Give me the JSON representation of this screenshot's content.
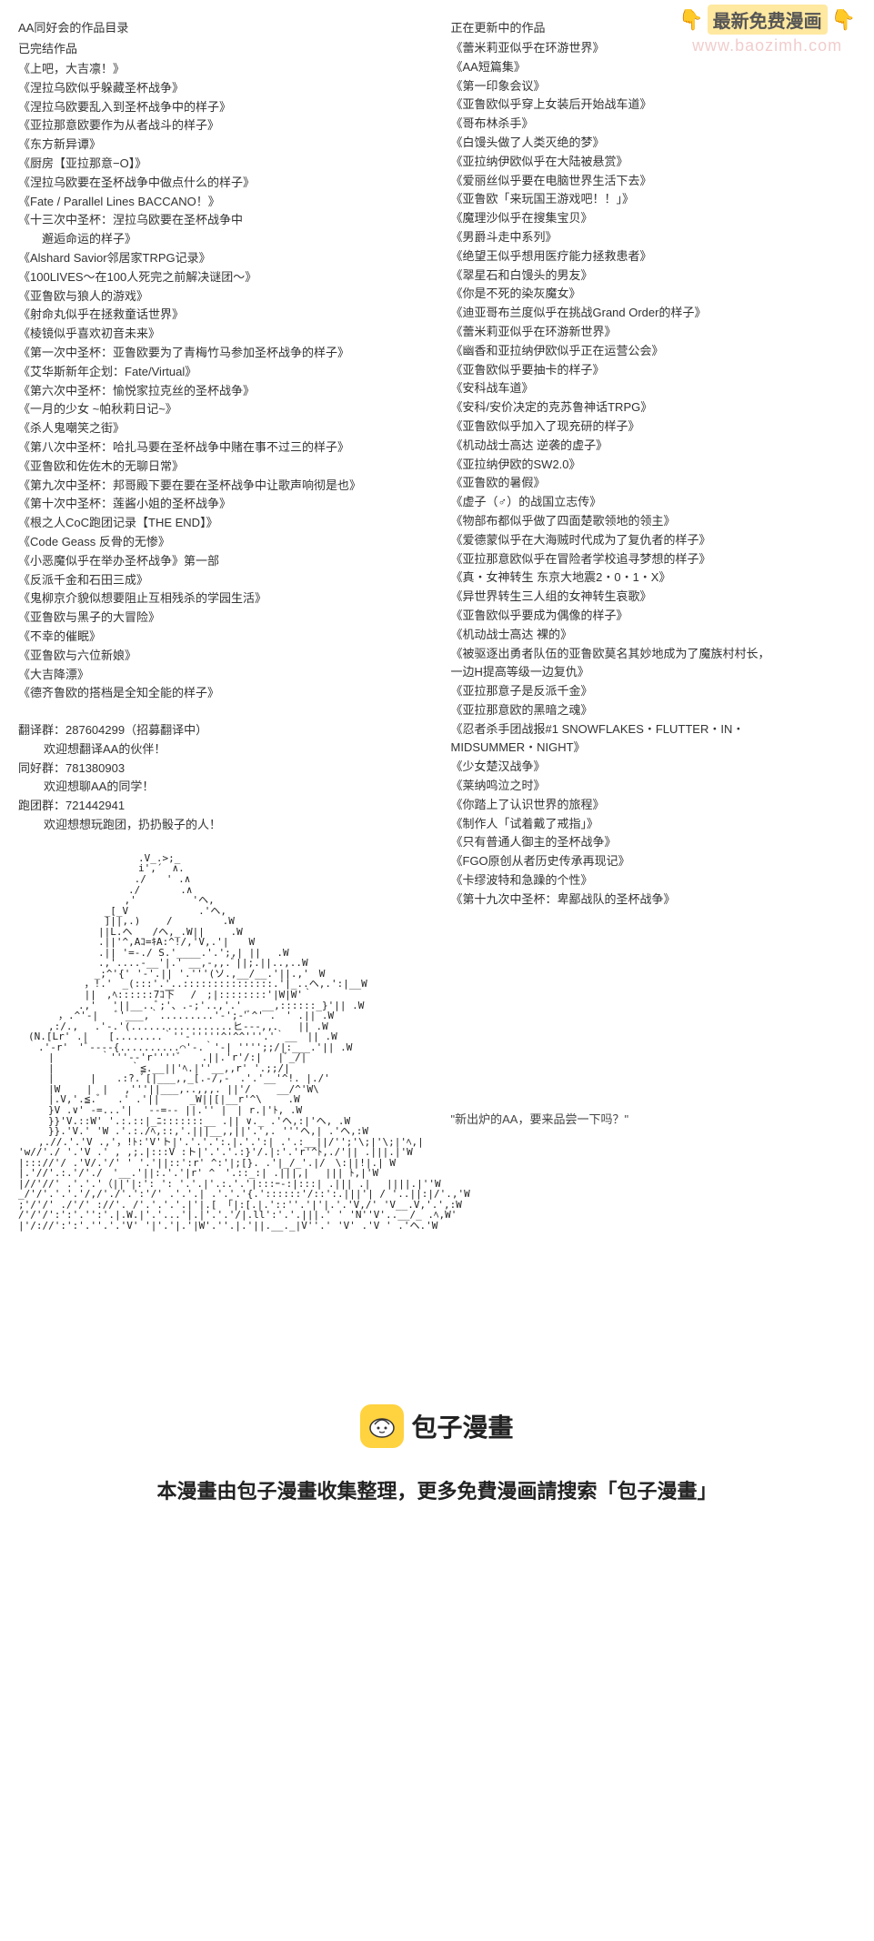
{
  "watermark": {
    "hand": "👇",
    "label": "最新免费漫画",
    "url": "www.baozimh.com"
  },
  "left": {
    "header": "AA同好会的作品目录",
    "subheader": "已完结作品",
    "works": [
      "《上吧，大吉凛！》",
      "《涅拉乌欧似乎躲藏圣杯战争》",
      "《涅拉乌欧要乱入到圣杯战争中的样子》",
      "《亚拉那意欧要作为从者战斗的样子》",
      "《东方新异谭》",
      "《厨房【亚拉那意−O】》",
      "《涅拉乌欧要在圣杯战争中做点什么的样子》",
      "《Fate / Parallel Lines BACCANO！》",
      "《十三次中圣杯：涅拉乌欧要在圣杯战争中",
      "　　邂逅命运的样子》",
      "《Alshard Savior邻居家TRPG记录》",
      "《100LIVES～在100人死完之前解决谜团～》",
      "《亚鲁欧与狼人的游戏》",
      "《射命丸似乎在拯救童话世界》",
      "《棱镜似乎喜欢初音未来》",
      "《第一次中圣杯：亚鲁欧要为了青梅竹马参加圣杯战争的样子》",
      "《艾华斯新年企划：Fate/Virtual》",
      "《第六次中圣杯：愉悦家拉克丝的圣杯战争》",
      "《一月的少女 ~帕秋莉日记~》",
      "《杀人鬼嘲笑之街》",
      "《第八次中圣杯：哈扎马要在圣杯战争中赌在事不过三的样子》",
      "《亚鲁欧和佐佐木的无聊日常》",
      "《第九次中圣杯：邦哥殿下要在要在圣杯战争中让歌声响彻是也》",
      "《第十次中圣杯：莲酱小姐的圣杯战争》",
      "《根之人CoC跑团记录【THE END】》",
      "《Code Geass 反骨的无惨》",
      "《小恶魔似乎在举办圣杯战争》第一部",
      "《反派千金和石田三成》",
      "《鬼柳京介貌似想要阻止互相残杀的学园生活》",
      "《亚鲁欧与黑子的大冒险》",
      "《不幸的催眠》",
      "《亚鲁欧与六位新娘》",
      "《大吉降漂》",
      "《德齐鲁欧的搭档是全知全能的样子》"
    ],
    "groups": [
      {
        "label": "翻译群：",
        "number": "287604299（招募翻译中）",
        "note": "欢迎想翻译AA的伙伴！"
      },
      {
        "label": "同好群：",
        "number": "781380903",
        "note": "欢迎想聊AA的同学！"
      },
      {
        "label": "跑团群：",
        "number": "721442941",
        "note": "欢迎想想玩跑团，扔扔骰子的人！"
      }
    ]
  },
  "right": {
    "header": "正在更新中的作品",
    "works": [
      "《蕾米莉亚似乎在环游世界》",
      "《AA短篇集》",
      "《第一印象会议》",
      "《亚鲁欧似乎穿上女装后开始战车道》",
      "《哥布林杀手》",
      "《白馒头做了人类灭绝的梦》",
      "《亚拉纳伊欧似乎在大陆被悬赏》",
      "《爱丽丝似乎要在电脑世界生活下去》",
      "《亚鲁欧「来玩国王游戏吧！！」》",
      "《魔理沙似乎在搜集宝贝》",
      "《男爵斗走中系列》",
      "《绝望王似乎想用医疗能力拯救患者》",
      "《翠星石和白馒头的男友》",
      "《你是不死的染灰魔女》",
      "《迪亚哥布兰度似乎在挑战Grand Order的样子》",
      "《蕾米莉亚似乎在环游新世界》",
      "《幽香和亚拉纳伊欧似乎正在运营公会》",
      "《亚鲁欧似乎要抽卡的样子》",
      "《安科战车道》",
      "《安科/安价决定的克苏鲁神话TRPG》",
      "《亚鲁欧似乎加入了现充研的样子》",
      "《机动战士高达 逆袭的虚子》",
      "《亚拉纳伊欧的SW2.0》",
      "《亚鲁欧的暑假》",
      "《虚子（♂）的战国立志传》",
      "《物部布都似乎做了四面楚歌领地的领主》",
      "《爱德蒙似乎在大海贼时代成为了复仇者的样子》",
      "《亚拉那意欧似乎在冒险者学校追寻梦想的样子》",
      "《真・女神转生 东京大地震2・0・1・X》",
      "《异世界转生三人组的女神转生哀歌》",
      "《亚鲁欧似乎要成为偶像的样子》",
      "《机动战士高达 裸的》",
      "《被驱逐出勇者队伍的亚鲁欧莫名其妙地成为了魔族村村长，",
      "一边H提高等级一边复仇》",
      "《亚拉那意子是反派千金》",
      "《亚拉那意欧的黑暗之魂》",
      "《忍者杀手团战报#1 SNOWFLAKES・FLUTTER・IN・",
      "MIDSUMMER・NIGHT》",
      "《少女楚汉战争》",
      "《莱纳鸣泣之时》",
      "《你踏上了认识世界的旅程》",
      "《制作人「试着戴了戒指」》",
      "《只有普通人御主的圣杯战争》",
      "《FGO原创从者历史传承再现记》",
      "《卡缪波特和急躁的个性》",
      "《第十九次中圣杯：卑鄙战队的圣杯战争》"
    ],
    "quote": "\"新出炉的AA，要来品尝一下吗？\""
  },
  "ascii": "　　　　　　　　　　　　.V_.>;_\n　　　　　　　　　　　　i',´　∧.\n　　　　　　　　　　　 ./　　' .∧\n　　　　　　　　　　　./　　　　.∧\n　　　　　　　　　　 ,'　　　　　 'ヘ,\n　　　　　　　　 _[_V　　　　　　　.'ヘ,\n　　　　　　　　 ]||,.)　　 /　　　　　.W\n　　　　　　　　||L.ヘ　　/ヘ,_.W||　　 .W\n　　　　　　　　.||'^,Aｺ=ｷA:^!/,'V,.'|　　W\n　　　　　　　　.|| '=-./ S.'____.'.';,| ||　 .W\n　　　　　　　　.,'....-__'|.' __,-,,.ﾞ||;.||..,..W\n　　　　　　　 _;^'{' '-'.|| '.'''(ソ.,__/__.'||.,'　W\n　　　　　　 ，!.'　_(:::'.'..:::::::::::::::.'|_..ヘ,.':|__W\n　　　　　　 ||　,ﾍ::::::7ｺ下　 /　;|::::::::'|W|W'｀\n　　　　　　.,'　 '||__..ﾞ;'、.-;'..,'.'　　__,::::::_}'|| .W\n　　　　，.^'-|　 ﾞ'___,｀.........'-';-'ﾞ^' .　' .|| .W\n　　　,:/.,　 .'-.'(.................ヒ---,,．　　|| .W\n　(N.[Lr' .|　　[........｀''-'''''^'^^'''.'｀__　|| .W\n　　.'-r'　'ﾞ----{..........⌒'-.｀'-| '''';;/|:___.'|| .W\n　　　|　　　　 ｀'''--'r''''ﾞ　　.||.'r'/:|　 |ﾞ_/|\n　　　|　　　　　　 　｀≦.__||'ﾍ.|''__,,r' '.;;/|\n　　　|　　　 |　　.:?.ﾞ[|___,,_[.-/,-　.'.'__'^!. |./'\n　　　|W　　 |　|　 ,'''||___,..,,,. ||'/　　 __/^'W\\\n　　　|.V,'.≦.ﾞ　 .' .'||　　　_W||[|__r'^\\　　 .W\n　　　}V .∨' -=...'|　 --=-- ||.'' |　| r.|'ﾄ, .W\n　　　}}'V.::W' '.:.::|_ﾆ:::::::__ .|| ∨._ .'ヘ,:|'ヘ, .W\n　　　}}.'V.' 'W .'.:./ﾍ,::,'.|||__,,||'.',. '''ヘ,| .'ヘ,:W\n　　,.//.'.'V .,'，!ﾄ:'V'ト|'.'.'.':.|.'.':| .'.:__||/'';'\\;|'\\;|'ﾍ,|\n'w//'./ '.'V .' , ,;.|:::V :ト|'.'.'.:}'/.|:'.'r'^ﾄ,./'|| .|||.|'W\n|::://'/ .'V/.'/' ' '.'||::':r' ^:'|;[}. .'|_/_'.|/　\\:||!|.| W\n|.'//'.:.'/'./　'__.'||:.'.'|r' ^　'.::_:| .|||,|　 ||| ﾄ,|'W\n|//'//' .'.'.'（||'|:': ': '.'.|'.:.'.'|:::ｰ-:|:::| .||| .|　 ||||.|''W\n_/'/'.'.'.'/,/'./'.':'/' .'.'.| .'.'.'{.'::::::'/::':.|||'| / '..||:|/'.,'W\n;'/'/' ./'/' ://'. /'.'.'.'.|'|.[ 「|:[.|.'::''.'|'|.'.'V,/' 'V__.V,'.',:W\n/'/'/':':'.'':'.|.W.|'.'...'|.|'.'.'/|.ll':'.'.|||.' ' 'N''V'..__/_ .ﾍ,W'\n|'/://':':'.''.'.'V' '|'.'|.'|W'.''.|.'||.__._|V''.' 'V' .'V ' .'ヘ.'W",
  "footer": {
    "logoName": "包子漫畫",
    "text": "本漫畫由包子漫畫收集整理，更多免費漫画請搜索「包子漫畫」"
  }
}
